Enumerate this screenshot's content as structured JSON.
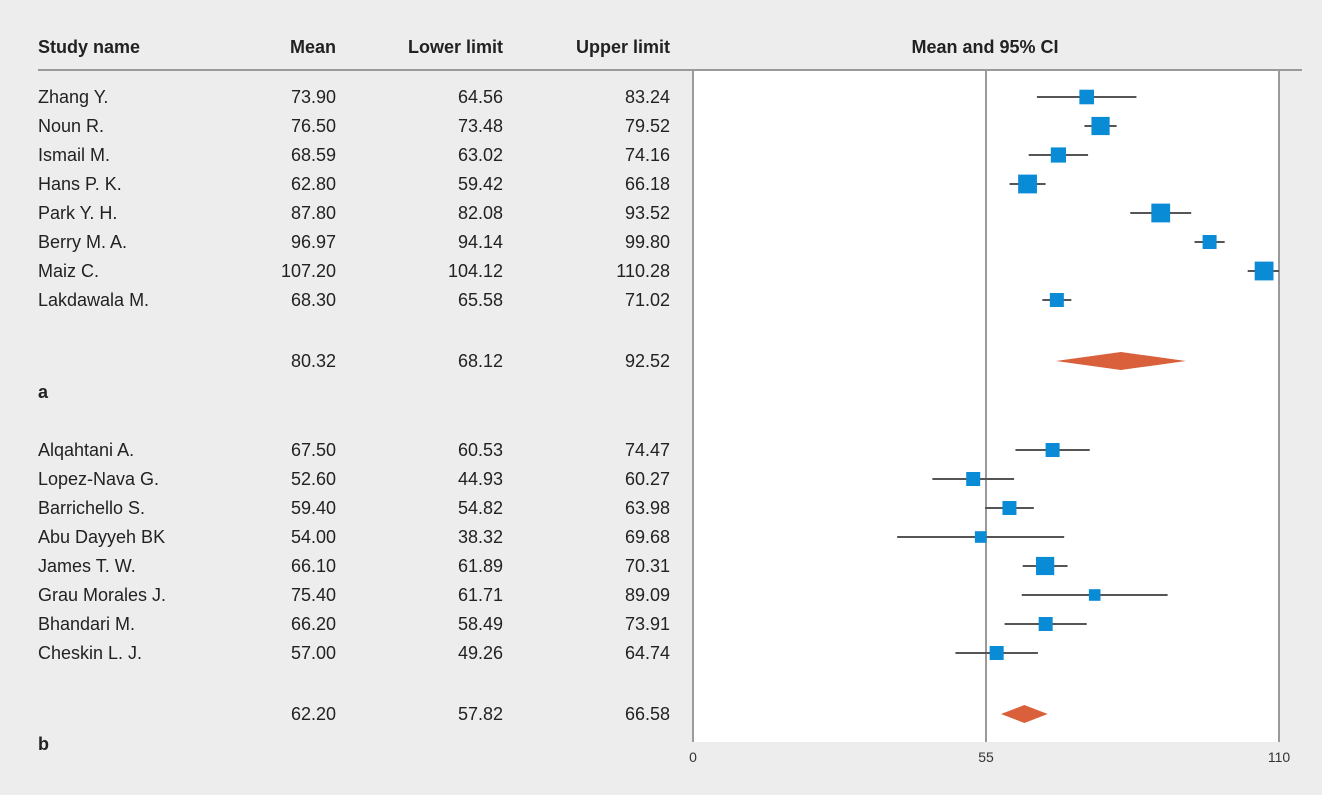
{
  "table_headers": {
    "study": "Study name",
    "mean": "Mean",
    "lower": "Lower limit",
    "upper": "Upper limit",
    "plot": "Mean and 95% CI"
  },
  "colors": {
    "study_marker": "#0a8bd6",
    "pooled_diamond": "#d9603a",
    "ci_line": "#555555",
    "reference_line": "#9a9a9a",
    "plot_background": "#ffffff",
    "page_background": "#ededed"
  },
  "chart_data": {
    "type": "forest",
    "xlim": [
      0,
      110
    ],
    "x_ticks": [
      "0",
      "55",
      "110"
    ],
    "reference_lines": [
      55,
      110
    ],
    "panels": [
      {
        "label": "a",
        "studies": [
          {
            "name": "Zhang Y.",
            "mean": "73.90",
            "lower": "64.56",
            "upper": "83.24",
            "weight": 0.55
          },
          {
            "name": "Noun R.",
            "mean": "76.50",
            "lower": "73.48",
            "upper": "79.52",
            "weight": 0.85
          },
          {
            "name": "Ismail M.",
            "mean": "68.59",
            "lower": "63.02",
            "upper": "74.16",
            "weight": 0.6
          },
          {
            "name": "Hans P. K.",
            "mean": "62.80",
            "lower": "59.42",
            "upper": "66.18",
            "weight": 0.9
          },
          {
            "name": "Park Y. H.",
            "mean": "87.80",
            "lower": "82.08",
            "upper": "93.52",
            "weight": 0.9
          },
          {
            "name": "Berry M. A.",
            "mean": "96.97",
            "lower": "94.14",
            "upper": "99.80",
            "weight": 0.5
          },
          {
            "name": "Maiz C.",
            "mean": "107.20",
            "lower": "104.12",
            "upper": "110.28",
            "weight": 0.9
          },
          {
            "name": "Lakdawala M.",
            "mean": "68.30",
            "lower": "65.58",
            "upper": "71.02",
            "weight": 0.5
          }
        ],
        "pooled": {
          "mean": "80.32",
          "lower": "68.12",
          "upper": "92.52"
        }
      },
      {
        "label": "b",
        "studies": [
          {
            "name": "Alqahtani A.",
            "mean": "67.50",
            "lower": "60.53",
            "upper": "74.47",
            "weight": 0.5
          },
          {
            "name": "Lopez-Nava G.",
            "mean": "52.60",
            "lower": "44.93",
            "upper": "60.27",
            "weight": 0.5
          },
          {
            "name": "Barrichello S.",
            "mean": "59.40",
            "lower": "54.82",
            "upper": "63.98",
            "weight": 0.5
          },
          {
            "name": "Abu Dayyeh BK",
            "mean": "54.00",
            "lower": "38.32",
            "upper": "69.68",
            "weight": 0.3
          },
          {
            "name": "James T. W.",
            "mean": "66.10",
            "lower": "61.89",
            "upper": "70.31",
            "weight": 0.85
          },
          {
            "name": "Grau Morales J.",
            "mean": "75.40",
            "lower": "61.71",
            "upper": "89.09",
            "weight": 0.3
          },
          {
            "name": "Bhandari M.",
            "mean": "66.20",
            "lower": "58.49",
            "upper": "73.91",
            "weight": 0.5
          },
          {
            "name": "Cheskin L. J.",
            "mean": "57.00",
            "lower": "49.26",
            "upper": "64.74",
            "weight": 0.5
          }
        ],
        "pooled": {
          "mean": "62.20",
          "lower": "57.82",
          "upper": "66.58"
        }
      }
    ]
  }
}
